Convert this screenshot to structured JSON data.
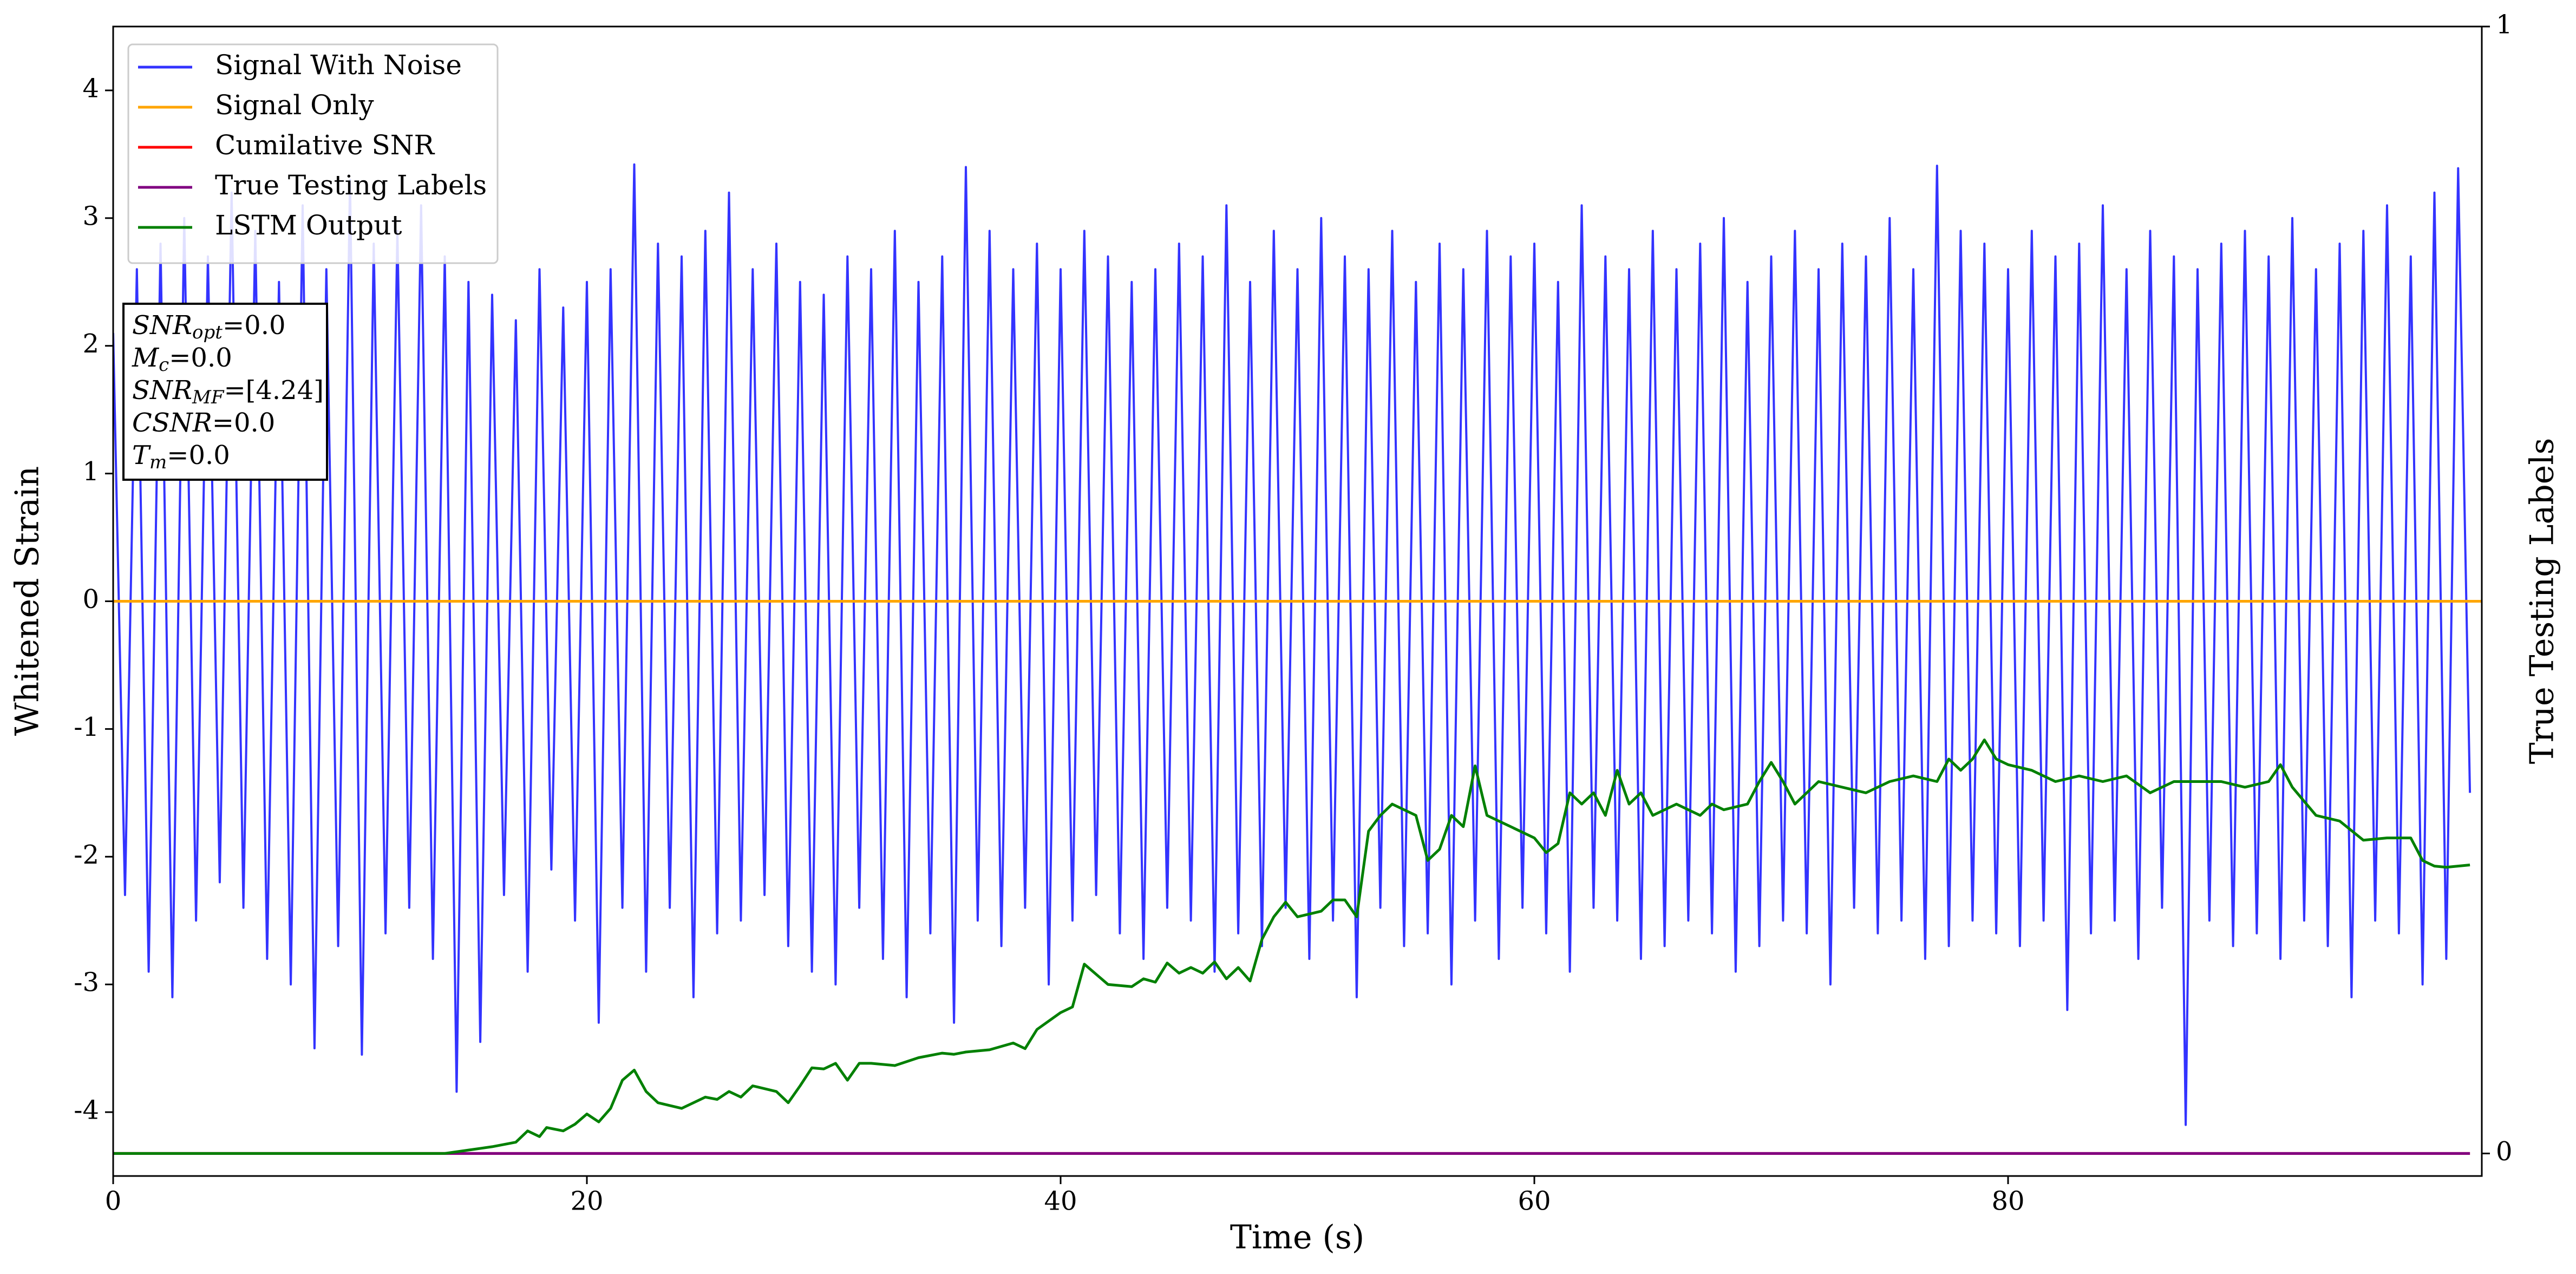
{
  "chart_data": {
    "type": "line",
    "xlabel": "Time (s)",
    "ylabel": "Whitened Strain",
    "y2label": "True Testing Labels",
    "xlim": [
      0,
      100
    ],
    "xticks": [
      0,
      20,
      40,
      60,
      80
    ],
    "ylim": [
      -4.5,
      4.5
    ],
    "yticks": [
      -4,
      -3,
      -2,
      -1,
      0,
      1,
      2,
      3,
      4
    ],
    "y2lim": [
      -0.02,
      1
    ],
    "y2ticks": [
      0,
      1
    ],
    "legend": "upper left",
    "annotations": [
      {
        "name": "SNR",
        "sub": "opt",
        "text": "=0.0"
      },
      {
        "name": "M",
        "sub": "c",
        "text": "=0.0"
      },
      {
        "name": "SNR",
        "sub": "MF",
        "text": "=[4.24]"
      },
      {
        "name": "CSNR",
        "sub": "",
        "text": "=0.0"
      },
      {
        "name": "T",
        "sub": "m",
        "text": "=0.0"
      }
    ],
    "series": [
      {
        "name": "Signal With Noise",
        "color": "#3333ff",
        "axis": "y",
        "x": [
          0,
          0.5,
          1,
          1.5,
          2,
          2.5,
          3,
          3.5,
          4,
          4.5,
          5,
          5.5,
          6,
          6.5,
          7,
          7.5,
          8,
          8.5,
          9,
          9.5,
          10,
          10.5,
          11,
          11.5,
          12,
          12.5,
          13,
          13.5,
          14,
          14.5,
          15,
          15.5,
          16,
          16.5,
          17,
          17.5,
          18,
          18.5,
          19,
          19.5,
          20,
          20.5,
          21,
          21.5,
          22,
          22.5,
          23,
          23.5,
          24,
          24.5,
          25,
          25.5,
          26,
          26.5,
          27,
          27.5,
          28,
          28.5,
          29,
          29.5,
          30,
          30.5,
          31,
          31.5,
          32,
          32.5,
          33,
          33.5,
          34,
          34.5,
          35,
          35.5,
          36,
          36.5,
          37,
          37.5,
          38,
          38.5,
          39,
          39.5,
          40,
          40.5,
          41,
          41.5,
          42,
          42.5,
          43,
          43.5,
          44,
          44.5,
          45,
          45.5,
          46,
          46.5,
          47,
          47.5,
          48,
          48.5,
          49,
          49.5,
          50,
          50.5,
          51,
          51.5,
          52,
          52.5,
          53,
          53.5,
          54,
          54.5,
          55,
          55.5,
          56,
          56.5,
          57,
          57.5,
          58,
          58.5,
          59,
          59.5,
          60,
          60.5,
          61,
          61.5,
          62,
          62.5,
          63,
          63.5,
          64,
          64.5,
          65,
          65.5,
          66,
          66.5,
          67,
          67.5,
          68,
          68.5,
          69,
          69.5,
          70,
          70.5,
          71,
          71.5,
          72,
          72.5,
          73,
          73.5,
          74,
          74.5,
          75,
          75.5,
          76,
          76.5,
          77,
          77.5,
          78,
          78.5,
          79,
          79.5,
          80,
          80.5,
          81,
          81.5,
          82,
          82.5,
          83,
          83.5,
          84,
          84.5,
          85,
          85.5,
          86,
          86.5,
          87,
          87.5,
          88,
          88.5,
          89,
          89.5,
          90,
          90.5,
          91,
          91.5,
          92,
          92.5,
          93,
          93.5,
          94,
          94.5,
          95,
          95.5,
          96,
          96.5,
          97,
          97.5,
          98,
          98.5,
          99,
          99.5
        ],
        "values": [
          2.1,
          -2.3,
          2.6,
          -2.9,
          2.8,
          -3.1,
          3.0,
          -2.5,
          2.7,
          -2.2,
          3.2,
          -2.4,
          2.9,
          -2.8,
          2.5,
          -3.0,
          3.1,
          -3.5,
          2.6,
          -2.7,
          3.3,
          -3.55,
          2.8,
          -2.6,
          2.9,
          -2.4,
          3.1,
          -2.8,
          2.7,
          -3.84,
          2.5,
          -3.45,
          2.4,
          -2.3,
          2.2,
          -2.9,
          2.6,
          -2.1,
          2.3,
          -2.5,
          2.5,
          -3.3,
          2.6,
          -2.4,
          3.42,
          -2.9,
          2.8,
          -2.4,
          2.7,
          -3.1,
          2.9,
          -2.6,
          3.2,
          -2.5,
          2.6,
          -2.3,
          2.8,
          -2.7,
          2.5,
          -2.9,
          2.4,
          -3.0,
          2.7,
          -2.4,
          2.6,
          -2.8,
          2.9,
          -3.1,
          2.5,
          -2.6,
          2.7,
          -3.3,
          3.4,
          -2.5,
          2.9,
          -2.7,
          2.6,
          -2.4,
          2.8,
          -3.0,
          2.6,
          -2.5,
          2.9,
          -2.3,
          2.7,
          -2.6,
          2.5,
          -2.8,
          2.6,
          -2.4,
          2.8,
          -2.5,
          2.7,
          -2.9,
          3.1,
          -2.6,
          2.5,
          -2.7,
          2.9,
          -2.4,
          2.6,
          -2.8,
          3.0,
          -2.5,
          2.7,
          -3.1,
          2.6,
          -2.4,
          2.9,
          -2.7,
          2.5,
          -2.6,
          2.8,
          -3.0,
          2.6,
          -2.5,
          2.9,
          -2.8,
          2.7,
          -2.4,
          2.8,
          -2.6,
          2.5,
          -2.9,
          3.1,
          -2.4,
          2.7,
          -2.5,
          2.6,
          -2.8,
          2.9,
          -2.7,
          2.6,
          -2.5,
          2.8,
          -2.6,
          3.0,
          -2.9,
          2.5,
          -2.7,
          2.7,
          -2.5,
          2.9,
          -2.6,
          2.6,
          -3.0,
          2.8,
          -2.4,
          2.7,
          -2.6,
          3.0,
          -2.5,
          2.6,
          -2.8,
          3.41,
          -2.7,
          2.9,
          -2.5,
          2.8,
          -2.6,
          2.6,
          -2.7,
          2.9,
          -2.5,
          2.7,
          -3.2,
          2.8,
          -2.6,
          3.1,
          -2.5,
          2.6,
          -2.8,
          2.9,
          -2.4,
          2.7,
          -4.1,
          2.6,
          -2.5,
          2.8,
          -2.7,
          2.9,
          -2.6,
          2.7,
          -2.8,
          3.0,
          -2.5,
          2.6,
          -2.7,
          2.8,
          -3.1,
          2.9,
          -2.5,
          3.1,
          -2.6,
          2.7,
          -3.0,
          3.2,
          -2.8,
          3.39,
          -1.5
        ]
      },
      {
        "name": "Signal Only",
        "color": "#ffa500",
        "axis": "y",
        "x": [
          0,
          100
        ],
        "values": [
          0,
          0
        ]
      },
      {
        "name": "Cumilative SNR",
        "color": "#ff0000",
        "axis": "y2",
        "x": [
          0,
          99.5
        ],
        "values": [
          0,
          0
        ]
      },
      {
        "name": "True Testing Labels",
        "color": "#800080",
        "axis": "y2",
        "x": [
          0,
          99.5
        ],
        "values": [
          0,
          0
        ]
      },
      {
        "name": "LSTM Output",
        "color": "#008000",
        "axis": "y2",
        "x": [
          0,
          14,
          15,
          16,
          17,
          17.5,
          18,
          18.3,
          19,
          19.5,
          20,
          20.5,
          21,
          21.5,
          22,
          22.5,
          23,
          24,
          25,
          25.5,
          26,
          26.5,
          27,
          28,
          28.5,
          29,
          29.5,
          30,
          30.5,
          31,
          31.5,
          32,
          33,
          34,
          35,
          35.5,
          36,
          37,
          38,
          38.5,
          39,
          40,
          40.5,
          41,
          42,
          43,
          43.5,
          44,
          44.5,
          45,
          45.5,
          46,
          46.5,
          47,
          47.5,
          48,
          48.5,
          49,
          49.5,
          50,
          51,
          51.5,
          52,
          52.5,
          53,
          53.5,
          54,
          55,
          55.5,
          56,
          56.5,
          57,
          57.5,
          58,
          59,
          60,
          60.5,
          61,
          61.5,
          62,
          62.5,
          63,
          63.5,
          64,
          64.5,
          65,
          66,
          67,
          67.5,
          68,
          69,
          69.5,
          70,
          70.5,
          71,
          72,
          73,
          74,
          75,
          76,
          77,
          77.5,
          78,
          78.5,
          79,
          79.5,
          80,
          81,
          82,
          83,
          84,
          85,
          86,
          87,
          88,
          89,
          90,
          91,
          91.5,
          92,
          93,
          94,
          95,
          96,
          97,
          97.5,
          98,
          98.5,
          99,
          99.5
        ],
        "values": [
          0,
          0,
          0.003,
          0.006,
          0.01,
          0.02,
          0.015,
          0.023,
          0.02,
          0.026,
          0.035,
          0.028,
          0.04,
          0.065,
          0.074,
          0.055,
          0.045,
          0.04,
          0.05,
          0.048,
          0.055,
          0.05,
          0.06,
          0.055,
          0.045,
          0.06,
          0.076,
          0.075,
          0.08,
          0.065,
          0.08,
          0.08,
          0.078,
          0.085,
          0.089,
          0.088,
          0.09,
          0.092,
          0.098,
          0.093,
          0.11,
          0.125,
          0.13,
          0.168,
          0.15,
          0.148,
          0.155,
          0.152,
          0.169,
          0.16,
          0.165,
          0.16,
          0.17,
          0.155,
          0.165,
          0.153,
          0.19,
          0.21,
          0.223,
          0.21,
          0.215,
          0.225,
          0.225,
          0.21,
          0.286,
          0.3,
          0.31,
          0.3,
          0.26,
          0.27,
          0.3,
          0.29,
          0.344,
          0.3,
          0.29,
          0.28,
          0.267,
          0.275,
          0.32,
          0.31,
          0.32,
          0.3,
          0.34,
          0.31,
          0.32,
          0.3,
          0.31,
          0.3,
          0.31,
          0.305,
          0.31,
          0.33,
          0.347,
          0.33,
          0.31,
          0.33,
          0.325,
          0.32,
          0.33,
          0.335,
          0.33,
          0.35,
          0.34,
          0.35,
          0.367,
          0.35,
          0.345,
          0.34,
          0.33,
          0.335,
          0.33,
          0.335,
          0.32,
          0.33,
          0.33,
          0.33,
          0.325,
          0.33,
          0.345,
          0.325,
          0.3,
          0.295,
          0.278,
          0.28,
          0.28,
          0.26,
          0.255,
          0.254,
          0.255,
          0.256
        ]
      }
    ]
  }
}
